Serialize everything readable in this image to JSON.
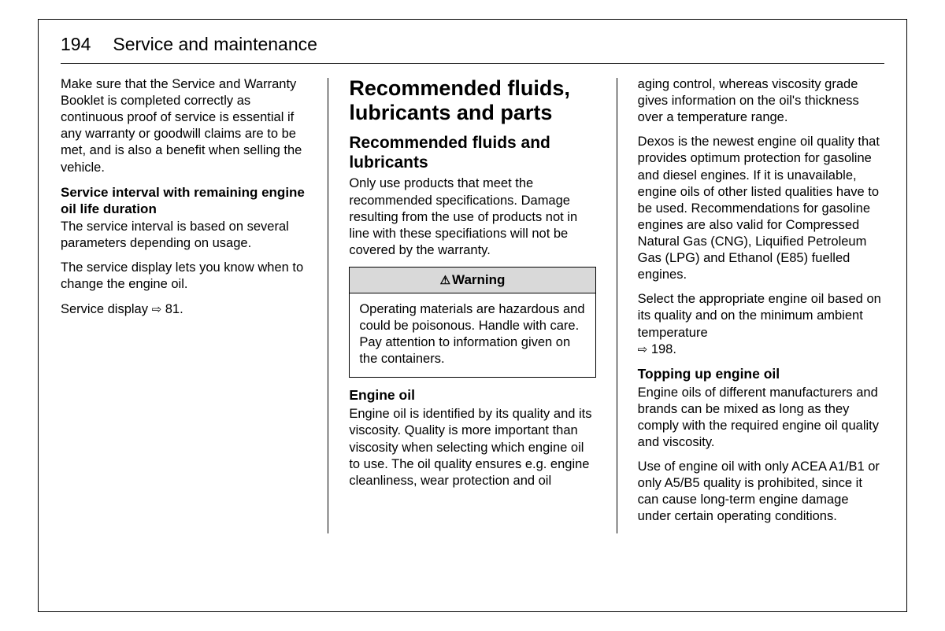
{
  "header": {
    "page_number": "194",
    "title": "Service and maintenance"
  },
  "column1": {
    "para1": "Make sure that the Service and Warranty Booklet is completed correctly as continuous proof of service is essential if any warranty or goodwill claims are to be met, and is also a benefit when selling the vehicle.",
    "sub_heading": "Service interval with remaining engine oil life duration",
    "para2": "The service interval is based on several parameters depending on usage.",
    "para3": "The service display lets you know when to change the engine oil.",
    "para4_prefix": "Service display ",
    "para4_ref": "81."
  },
  "column2": {
    "h1": "Recommended fluids, lubricants and parts",
    "h2": "Recommended fluids and lubricants",
    "para1": "Only use products that meet the recommended specifications. Damage resulting from the use of products not in line with these specifiations will not be covered by the warranty.",
    "warning": {
      "label": "Warning",
      "body": "Operating materials are hazardous and could be poisonous. Handle with care. Pay attention to information given on the containers."
    },
    "h3": "Engine oil",
    "para2": "Engine oil is identified by its quality and its viscosity. Quality is more important than viscosity when selecting which engine oil to use. The oil quality ensures e.g. engine cleanliness, wear protection and oil"
  },
  "column3": {
    "para1": "aging control, whereas viscosity grade gives information on the oil's thickness over a temperature range.",
    "para2": "Dexos is the newest engine oil quality that provides optimum protection for gasoline and diesel engines. If it is unavailable, engine oils of other listed qualities have to be used. Recommendations for gasoline engines are also valid for Compressed Natural Gas (CNG), Liquified Petroleum Gas (LPG) and Ethanol (E85) fuelled engines.",
    "para3_prefix": "Select the appropriate engine oil based on its quality and on the minimum ambient temperature ",
    "para3_ref": "198.",
    "h3": "Topping up engine oil",
    "para4": "Engine oils of different manufacturers and brands can be mixed as long as they comply with the required engine oil quality and viscosity.",
    "para5": "Use of engine oil with only ACEA A1/B1 or only A5/B5 quality is prohibited, since it can cause long-term engine damage under certain operating conditions."
  },
  "icons": {
    "warning_triangle": "⚠",
    "ref_arrow": "⇨"
  }
}
